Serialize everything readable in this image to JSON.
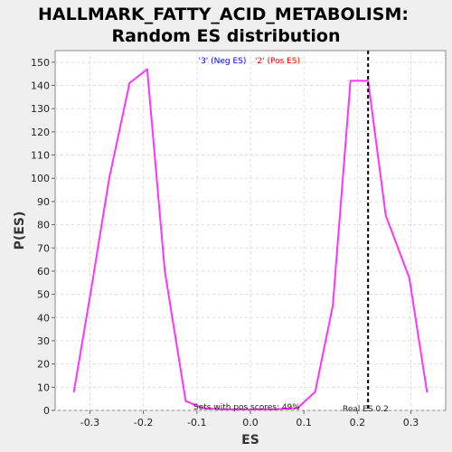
{
  "chart_data": {
    "type": "line",
    "title_line1": "HALLMARK_FATTY_ACID_METABOLISM:",
    "title_line2": "Random ES distribution",
    "xlabel": "ES",
    "ylabel": "P(ES)",
    "xlim": [
      -0.365,
      0.365
    ],
    "ylim": [
      0,
      155
    ],
    "x_ticks": [
      -0.3,
      -0.2,
      -0.1,
      0.0,
      0.1,
      0.2,
      0.3
    ],
    "x_tick_labels": [
      "-0.3",
      "-0.2",
      "-0.1",
      "0.0",
      "0.1",
      "0.2",
      "0.3"
    ],
    "y_ticks": [
      0,
      10,
      20,
      30,
      40,
      50,
      60,
      70,
      80,
      90,
      100,
      110,
      120,
      130,
      140,
      150
    ],
    "grid": true,
    "legend": [
      {
        "label": "'3' (Neg ES)",
        "color": "#0000ff"
      },
      {
        "label": "'2' (Pos ES)",
        "color": "#ff0000"
      }
    ],
    "legend_position": "top-center",
    "series": [
      {
        "color": "#ff33ff",
        "x": [
          -0.33,
          -0.297,
          -0.264,
          -0.226,
          -0.193,
          -0.16,
          -0.121,
          -0.088,
          -0.055,
          -0.022,
          0.011,
          0.044,
          0.088,
          0.121,
          0.154,
          0.187,
          0.22,
          0.253,
          0.297,
          0.33
        ],
        "y": [
          8,
          53,
          100,
          141,
          147,
          60,
          4,
          1,
          0.5,
          0.5,
          0.5,
          0.5,
          1,
          8,
          45,
          142,
          142,
          84,
          57,
          8
        ]
      }
    ],
    "real_es": 0.22,
    "real_es_label": "Real ES 0.2",
    "annotation": "Sets with pos scores: 49%"
  },
  "colors": {
    "background": "#efefef",
    "plot_background": "#ffffff",
    "grid": "#dddddd"
  }
}
